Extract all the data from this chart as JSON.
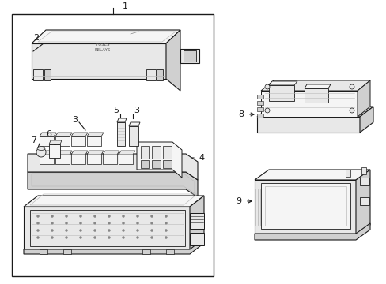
{
  "bg": "#ffffff",
  "lc": "#1a1a1a",
  "lw": 0.8,
  "fig_w": 4.89,
  "fig_h": 3.6,
  "dpi": 100,
  "label_fs": 8,
  "gray_light": "#f5f5f5",
  "gray_mid": "#e8e8e8",
  "gray_dark": "#d0d0d0",
  "gray_hatch": "#bbbbbb"
}
